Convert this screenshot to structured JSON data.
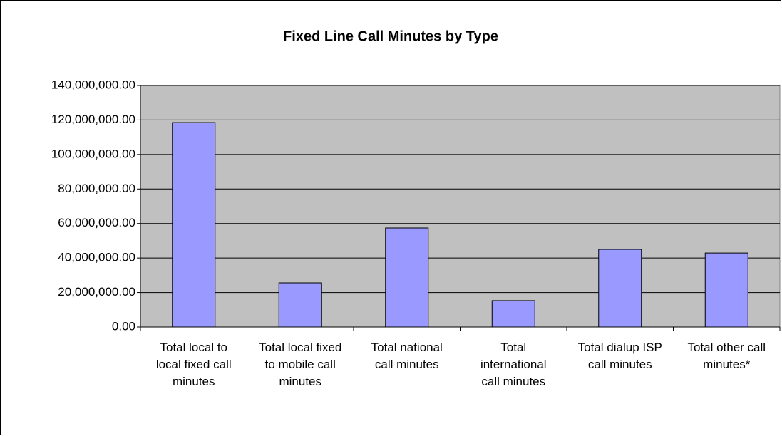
{
  "chart_data": {
    "type": "bar",
    "title": "Fixed Line Call Minutes by Type",
    "categories": [
      "Total local to local fixed call minutes",
      "Total local fixed to mobile call minutes",
      "Total national call minutes",
      "Total international call minutes",
      "Total dialup ISP call minutes",
      "Total other call minutes*"
    ],
    "values": [
      118500000,
      25600000,
      57400000,
      15300000,
      45000000,
      42900000
    ],
    "color": "#9999ff",
    "ylim": [
      0,
      140000000
    ],
    "yticks": [
      {
        "value": 0,
        "label": "0.00"
      },
      {
        "value": 20000000,
        "label": "20,000,000.00"
      },
      {
        "value": 40000000,
        "label": "40,000,000.00"
      },
      {
        "value": 60000000,
        "label": "60,000,000.00"
      },
      {
        "value": 80000000,
        "label": "80,000,000.00"
      },
      {
        "value": 100000000,
        "label": "100,000,000.00"
      },
      {
        "value": 120000000,
        "label": "120,000,000.00"
      },
      {
        "value": 140000000,
        "label": "140,000,000.00"
      }
    ],
    "grid": true
  }
}
